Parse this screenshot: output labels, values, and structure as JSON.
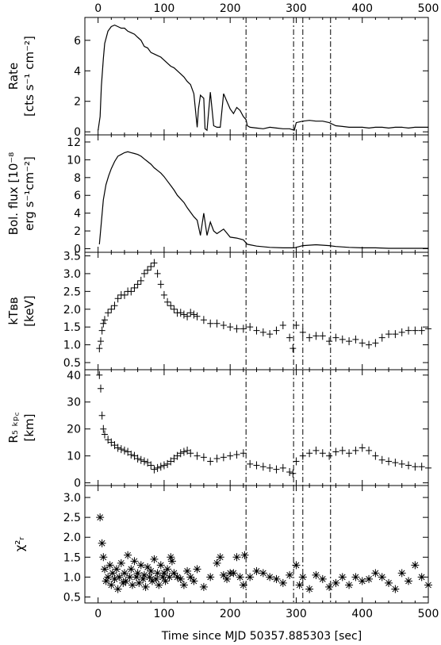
{
  "chart_data": [
    {
      "type": "line",
      "ylabel_lines": [
        "Rate",
        "[cts s⁻¹ cm⁻²]"
      ],
      "xlim": [
        -20,
        500
      ],
      "ylim": [
        -0.2,
        7.5
      ],
      "yticks": [
        "0",
        "2",
        "4",
        "6"
      ],
      "ytick_values": [
        0,
        2,
        4,
        6
      ],
      "series": [
        {
          "x": [
            0,
            3,
            5,
            8,
            10,
            15,
            20,
            25,
            30,
            35,
            40,
            45,
            50,
            55,
            60,
            65,
            70,
            75,
            80,
            85,
            90,
            95,
            100,
            105,
            110,
            115,
            120,
            125,
            130,
            135,
            140,
            145,
            150,
            152,
            155,
            160,
            162,
            165,
            170,
            175,
            180,
            185,
            190,
            195,
            200,
            205,
            210,
            215,
            220,
            224,
            226,
            230,
            240,
            250,
            260,
            270,
            280,
            290,
            297,
            300,
            310,
            320,
            330,
            340,
            350,
            360,
            370,
            380,
            390,
            400,
            410,
            420,
            430,
            440,
            450,
            460,
            470,
            480,
            490,
            500
          ],
          "y": [
            0.1,
            1.0,
            3.0,
            4.8,
            5.8,
            6.6,
            6.9,
            7.0,
            6.9,
            6.8,
            6.8,
            6.6,
            6.5,
            6.4,
            6.2,
            6.0,
            5.6,
            5.5,
            5.2,
            5.1,
            5.0,
            4.9,
            4.7,
            4.5,
            4.3,
            4.2,
            4.0,
            3.8,
            3.6,
            3.3,
            3.1,
            2.5,
            0.3,
            1.5,
            2.4,
            2.2,
            0.2,
            0.1,
            2.6,
            0.4,
            0.3,
            0.3,
            2.5,
            2.0,
            1.5,
            1.2,
            1.6,
            1.4,
            1.0,
            0.8,
            0.4,
            0.3,
            0.25,
            0.2,
            0.3,
            0.25,
            0.2,
            0.2,
            0.1,
            0.6,
            0.7,
            0.75,
            0.7,
            0.7,
            0.6,
            0.4,
            0.35,
            0.3,
            0.3,
            0.3,
            0.25,
            0.3,
            0.3,
            0.25,
            0.3,
            0.3,
            0.25,
            0.3,
            0.3,
            0.3
          ]
        }
      ]
    },
    {
      "type": "line",
      "ylabel_lines": [
        "Bol. flux [10⁻⁸",
        "erg s⁻¹cm⁻²]"
      ],
      "xlim": [
        -20,
        500
      ],
      "ylim": [
        -0.4,
        12.8
      ],
      "yticks": [
        "0",
        "2",
        "4",
        "6",
        "8",
        "10",
        "12"
      ],
      "ytick_values": [
        0,
        2,
        4,
        6,
        8,
        10,
        12
      ],
      "series": [
        {
          "x": [
            2,
            5,
            8,
            12,
            16,
            20,
            25,
            30,
            35,
            40,
            45,
            50,
            55,
            60,
            65,
            70,
            75,
            80,
            85,
            90,
            95,
            100,
            105,
            110,
            115,
            120,
            125,
            130,
            135,
            140,
            145,
            150,
            155,
            160,
            165,
            170,
            175,
            180,
            190,
            200,
            210,
            220,
            226,
            240,
            260,
            280,
            297,
            310,
            330,
            350,
            360,
            380,
            400,
            420,
            440,
            460,
            480,
            500
          ],
          "y": [
            0.5,
            3.0,
            5.5,
            7.2,
            8.2,
            9.0,
            9.8,
            10.4,
            10.6,
            10.8,
            10.9,
            10.8,
            10.7,
            10.6,
            10.4,
            10.1,
            9.8,
            9.5,
            9.1,
            8.8,
            8.5,
            8.1,
            7.6,
            7.1,
            6.6,
            6.0,
            5.6,
            5.2,
            4.6,
            4.1,
            3.6,
            3.2,
            1.5,
            4.0,
            1.5,
            3.0,
            2.0,
            1.7,
            2.2,
            1.3,
            1.2,
            1.0,
            0.5,
            0.3,
            0.15,
            0.1,
            0.1,
            0.35,
            0.45,
            0.35,
            0.25,
            0.15,
            0.1,
            0.1,
            0.05,
            0.05,
            0.05,
            0.05
          ]
        }
      ]
    },
    {
      "type": "scatter",
      "ylabel_lines": [
        "kTʙʙ",
        "[keV]"
      ],
      "xlim": [
        -20,
        500
      ],
      "ylim": [
        0.3,
        3.6
      ],
      "yticks": [
        "0.5",
        "1.0",
        "1.5",
        "2.0",
        "2.5",
        "3.0",
        "3.5"
      ],
      "ytick_values": [
        0.5,
        1.0,
        1.5,
        2.0,
        2.5,
        3.0,
        3.5
      ],
      "series": [
        {
          "x": [
            2,
            4,
            6,
            8,
            10,
            15,
            20,
            25,
            30,
            35,
            40,
            45,
            50,
            55,
            60,
            65,
            70,
            75,
            80,
            85,
            90,
            95,
            100,
            105,
            110,
            115,
            120,
            125,
            130,
            135,
            140,
            145,
            150,
            160,
            170,
            180,
            190,
            200,
            210,
            220,
            230,
            240,
            250,
            260,
            270,
            280,
            290,
            295,
            300,
            310,
            320,
            330,
            340,
            350,
            360,
            370,
            380,
            390,
            400,
            410,
            420,
            430,
            440,
            450,
            460,
            470,
            480,
            490,
            500
          ],
          "y": [
            0.9,
            1.1,
            1.4,
            1.6,
            1.7,
            1.9,
            2.0,
            2.1,
            2.3,
            2.4,
            2.4,
            2.5,
            2.5,
            2.6,
            2.7,
            2.8,
            3.0,
            3.1,
            3.2,
            3.3,
            3.0,
            2.7,
            2.4,
            2.2,
            2.1,
            2.0,
            1.9,
            1.9,
            1.85,
            1.8,
            1.9,
            1.85,
            1.8,
            1.7,
            1.6,
            1.6,
            1.55,
            1.5,
            1.45,
            1.45,
            1.5,
            1.4,
            1.35,
            1.3,
            1.4,
            1.55,
            1.2,
            0.9,
            1.55,
            1.35,
            1.2,
            1.25,
            1.25,
            1.1,
            1.2,
            1.15,
            1.1,
            1.15,
            1.05,
            1.0,
            1.05,
            1.2,
            1.3,
            1.3,
            1.35,
            1.4,
            1.4,
            1.4,
            1.45
          ]
        }
      ]
    },
    {
      "type": "scatter",
      "ylabel_lines": [
        "R₅ ₖₚ꜀",
        "[km]"
      ],
      "xlim": [
        -20,
        500
      ],
      "ylim": [
        -1,
        42
      ],
      "yticks": [
        "0",
        "10",
        "20",
        "30",
        "40"
      ],
      "ytick_values": [
        0,
        10,
        20,
        30,
        40
      ],
      "series": [
        {
          "x": [
            2,
            4,
            6,
            8,
            10,
            15,
            20,
            25,
            30,
            35,
            40,
            45,
            50,
            55,
            60,
            65,
            70,
            75,
            80,
            85,
            90,
            95,
            100,
            105,
            110,
            115,
            120,
            125,
            130,
            135,
            140,
            150,
            160,
            170,
            180,
            190,
            200,
            210,
            220,
            230,
            240,
            250,
            260,
            270,
            280,
            290,
            295,
            300,
            310,
            320,
            330,
            340,
            350,
            360,
            370,
            380,
            390,
            400,
            410,
            420,
            430,
            440,
            450,
            460,
            470,
            480,
            490,
            500
          ],
          "y": [
            40,
            35,
            25,
            20,
            18,
            16,
            15,
            14,
            13,
            12.5,
            12,
            11.5,
            10.5,
            10,
            9,
            8.5,
            8,
            7.5,
            6.5,
            5,
            5.5,
            6,
            6.5,
            7,
            8,
            9,
            10,
            11,
            11.5,
            12,
            11,
            10,
            9.5,
            8,
            9,
            9.5,
            10,
            10.5,
            11,
            7,
            6.5,
            6,
            5.5,
            5,
            5.5,
            4,
            3.5,
            8,
            10,
            11,
            12,
            11,
            10,
            11.5,
            12,
            11,
            12,
            13,
            12,
            10,
            8.5,
            8,
            7.5,
            7,
            6.5,
            6,
            6,
            5.5
          ]
        }
      ]
    },
    {
      "type": "scatter",
      "ylabel_lines": [
        "χ²ᵣ"
      ],
      "xlim": [
        -20,
        500
      ],
      "xlabel": "Time since MJD 50357.885303 [sec]",
      "xticks": [
        "0",
        "100",
        "200",
        "300",
        "400",
        "500"
      ],
      "xtick_values": [
        0,
        100,
        200,
        300,
        400,
        500
      ],
      "ylim": [
        0.35,
        3.3
      ],
      "yticks": [
        "0.5",
        "1.0",
        "1.5",
        "2.0",
        "2.5",
        "3.0"
      ],
      "ytick_values": [
        0.5,
        1.0,
        1.5,
        2.0,
        2.5,
        3.0
      ],
      "series": [
        {
          "marker": "asterisk",
          "x": [
            3,
            6,
            8,
            10,
            12,
            15,
            18,
            20,
            22,
            25,
            28,
            30,
            32,
            35,
            38,
            40,
            42,
            45,
            48,
            50,
            52,
            55,
            58,
            60,
            62,
            65,
            68,
            70,
            72,
            75,
            78,
            80,
            82,
            85,
            88,
            90,
            92,
            95,
            98,
            100,
            102,
            105,
            108,
            110,
            112,
            115,
            120,
            125,
            130,
            135,
            140,
            145,
            150,
            160,
            170,
            180,
            185,
            190,
            195,
            200,
            205,
            210,
            215,
            220,
            222,
            230,
            240,
            250,
            260,
            270,
            280,
            290,
            300,
            305,
            310,
            320,
            330,
            340,
            350,
            360,
            370,
            380,
            390,
            400,
            410,
            420,
            430,
            440,
            450,
            460,
            470,
            480,
            490,
            500
          ],
          "y": [
            2.5,
            1.85,
            1.5,
            1.2,
            0.9,
            1.0,
            1.3,
            0.8,
            1.1,
            0.95,
            1.2,
            0.7,
            1.0,
            1.35,
            0.85,
            1.1,
            0.9,
            1.55,
            1.0,
            1.2,
            0.8,
            1.4,
            1.0,
            1.1,
            0.85,
            1.3,
            0.95,
            1.05,
            0.75,
            1.25,
            1.0,
            1.15,
            0.9,
            1.45,
            0.95,
            1.1,
            0.8,
            1.3,
            1.0,
            1.1,
            0.9,
            1.2,
            1.0,
            1.5,
            1.4,
            1.1,
            1.0,
            0.95,
            0.8,
            1.15,
            1.0,
            0.9,
            1.2,
            0.75,
            1.0,
            1.35,
            1.5,
            1.05,
            0.95,
            1.1,
            1.1,
            1.5,
            1.0,
            0.8,
            1.55,
            1.0,
            1.15,
            1.1,
            1.0,
            0.95,
            0.85,
            1.05,
            1.3,
            0.8,
            1.0,
            0.7,
            1.05,
            0.95,
            0.75,
            0.85,
            1.0,
            0.8,
            1.0,
            0.9,
            0.95,
            1.1,
            1.0,
            0.85,
            0.7,
            1.1,
            0.9,
            1.3,
            1.0,
            0.8
          ]
        }
      ]
    }
  ],
  "vlines": [
    224,
    296,
    310,
    352
  ]
}
